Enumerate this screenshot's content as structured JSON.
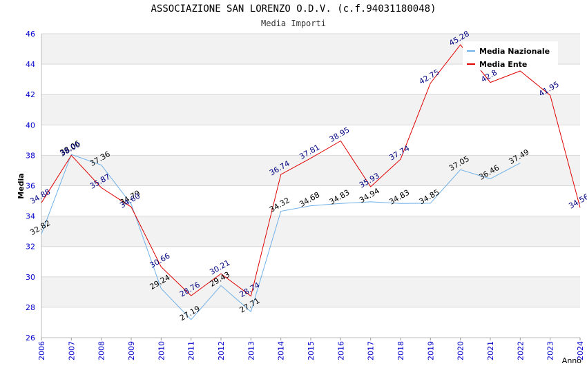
{
  "chart_data": {
    "type": "line",
    "title": "ASSOCIAZIONE SAN LORENZO O.D.V. (c.f.94031180048)",
    "subtitle": "Media Importi",
    "xlabel": "Anno",
    "ylabel": "Media",
    "ylim": [
      26,
      46
    ],
    "yticks": [
      26,
      28,
      30,
      32,
      34,
      36,
      38,
      40,
      42,
      44,
      46
    ],
    "categories": [
      "2006",
      "2007",
      "2008",
      "2009",
      "2010",
      "2011",
      "2012",
      "2013",
      "2014",
      "2015",
      "2016",
      "2017",
      "2018",
      "2019",
      "2020",
      "2021",
      "2022",
      "2023",
      "2024"
    ],
    "legend_position": "top-right",
    "series": [
      {
        "name": "Media Nazionale",
        "color": "#6fb0e8",
        "label_color": "#000000",
        "values": [
          32.82,
          38.06,
          37.36,
          34.79,
          29.24,
          27.19,
          29.43,
          27.71,
          34.32,
          34.68,
          34.83,
          34.94,
          34.83,
          34.85,
          37.05,
          36.46,
          37.49,
          null,
          null
        ],
        "labels": [
          "32.82",
          "38.06",
          "37.36",
          "34.79",
          "29.24",
          "27.19",
          "29.43",
          "27.71",
          "34.32",
          "34.68",
          "34.83",
          "34.94",
          "34.83",
          "34.85",
          "37.05",
          "36.46",
          "37.49",
          null,
          null
        ]
      },
      {
        "name": "Media Ente",
        "color": "#e00000",
        "label_color": "#000080",
        "values": [
          34.88,
          38.0,
          35.87,
          34.6,
          30.66,
          28.76,
          30.21,
          28.74,
          36.74,
          37.81,
          38.95,
          35.93,
          37.74,
          42.75,
          45.28,
          42.8,
          43.55,
          41.95,
          34.56
        ],
        "labels": [
          "34.88",
          "38.00",
          "35.87",
          "34.60",
          "30.66",
          "28.76",
          "30.21",
          "28.74",
          "36.74",
          "37.81",
          "38.95",
          "35.93",
          "37.74",
          "42.75",
          "45.28",
          "42.8",
          null,
          "41.95",
          "34.56"
        ]
      }
    ]
  }
}
